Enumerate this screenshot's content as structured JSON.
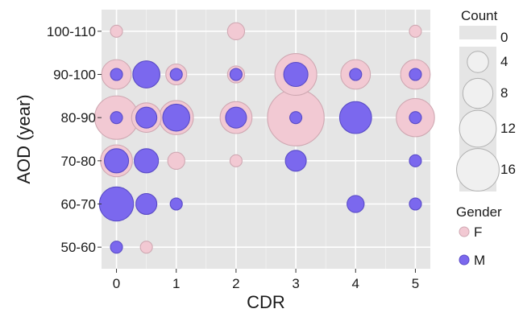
{
  "chart_data": {
    "type": "scatter",
    "xlabel": "CDR",
    "ylabel": "AOD (year)",
    "x_ticks": [
      "0",
      "1",
      "2",
      "3",
      "4",
      "5"
    ],
    "x_range": [
      -0.25,
      5.25
    ],
    "y_categories": [
      "50-60",
      "60-70",
      "70-80",
      "80-90",
      "90-100",
      "100-110"
    ],
    "grid": true,
    "legend_position": "right",
    "colors": {
      "panel": "#e5e5e5",
      "grid": "#ffffff",
      "F_fill": "#f2c9d3",
      "F_stroke": "#cfa8b2",
      "M_fill": "#7b68ee",
      "M_stroke": "#5a4cc7",
      "size_legend_fill": "#f0f0f0",
      "size_legend_stroke": "#b0b0b0"
    },
    "size_legend": {
      "title": "Count",
      "values": [
        0,
        4,
        8,
        12,
        16
      ],
      "labels": [
        "0",
        "4",
        "8",
        "12",
        "16"
      ]
    },
    "color_legend": {
      "title": "Gender",
      "items": [
        {
          "key": "F",
          "label": "F"
        },
        {
          "key": "M",
          "label": "M"
        }
      ]
    },
    "series": [
      {
        "name": "F",
        "points": [
          {
            "x": 0,
            "y": "100-110",
            "count": 1
          },
          {
            "x": 2,
            "y": "100-110",
            "count": 2
          },
          {
            "x": 5,
            "y": "100-110",
            "count": 1
          },
          {
            "x": 0,
            "y": "90-100",
            "count": 6
          },
          {
            "x": 0.5,
            "y": "90-100",
            "count": 5
          },
          {
            "x": 1,
            "y": "90-100",
            "count": 3
          },
          {
            "x": 2,
            "y": "90-100",
            "count": 2
          },
          {
            "x": 3,
            "y": "90-100",
            "count": 12
          },
          {
            "x": 4,
            "y": "90-100",
            "count": 6
          },
          {
            "x": 5,
            "y": "90-100",
            "count": 6
          },
          {
            "x": 0,
            "y": "80-90",
            "count": 13
          },
          {
            "x": 0.5,
            "y": "80-90",
            "count": 6
          },
          {
            "x": 1,
            "y": "80-90",
            "count": 8
          },
          {
            "x": 2,
            "y": "80-90",
            "count": 7
          },
          {
            "x": 3,
            "y": "80-90",
            "count": 22
          },
          {
            "x": 5,
            "y": "80-90",
            "count": 10
          },
          {
            "x": 0,
            "y": "70-80",
            "count": 7
          },
          {
            "x": 1,
            "y": "70-80",
            "count": 2
          },
          {
            "x": 2,
            "y": "70-80",
            "count": 1
          },
          {
            "x": 0.5,
            "y": "60-70",
            "count": 3
          },
          {
            "x": 0.5,
            "y": "50-60",
            "count": 1
          }
        ]
      },
      {
        "name": "M",
        "points": [
          {
            "x": 0,
            "y": "90-100",
            "count": 1
          },
          {
            "x": 0.5,
            "y": "90-100",
            "count": 5
          },
          {
            "x": 1,
            "y": "90-100",
            "count": 1
          },
          {
            "x": 2,
            "y": "90-100",
            "count": 1
          },
          {
            "x": 3,
            "y": "90-100",
            "count": 4
          },
          {
            "x": 4,
            "y": "90-100",
            "count": 1
          },
          {
            "x": 5,
            "y": "90-100",
            "count": 1
          },
          {
            "x": 0,
            "y": "80-90",
            "count": 1
          },
          {
            "x": 0.5,
            "y": "80-90",
            "count": 3
          },
          {
            "x": 1,
            "y": "80-90",
            "count": 5
          },
          {
            "x": 2,
            "y": "80-90",
            "count": 3
          },
          {
            "x": 3,
            "y": "80-90",
            "count": 1
          },
          {
            "x": 4,
            "y": "80-90",
            "count": 7
          },
          {
            "x": 5,
            "y": "80-90",
            "count": 1
          },
          {
            "x": 0,
            "y": "70-80",
            "count": 4
          },
          {
            "x": 0.5,
            "y": "70-80",
            "count": 4
          },
          {
            "x": 3,
            "y": "70-80",
            "count": 3
          },
          {
            "x": 5,
            "y": "70-80",
            "count": 1
          },
          {
            "x": 0,
            "y": "60-70",
            "count": 8
          },
          {
            "x": 0.5,
            "y": "60-70",
            "count": 3
          },
          {
            "x": 1,
            "y": "60-70",
            "count": 1
          },
          {
            "x": 4,
            "y": "60-70",
            "count": 2
          },
          {
            "x": 5,
            "y": "60-70",
            "count": 1
          },
          {
            "x": 0,
            "y": "50-60",
            "count": 1
          }
        ]
      }
    ]
  }
}
